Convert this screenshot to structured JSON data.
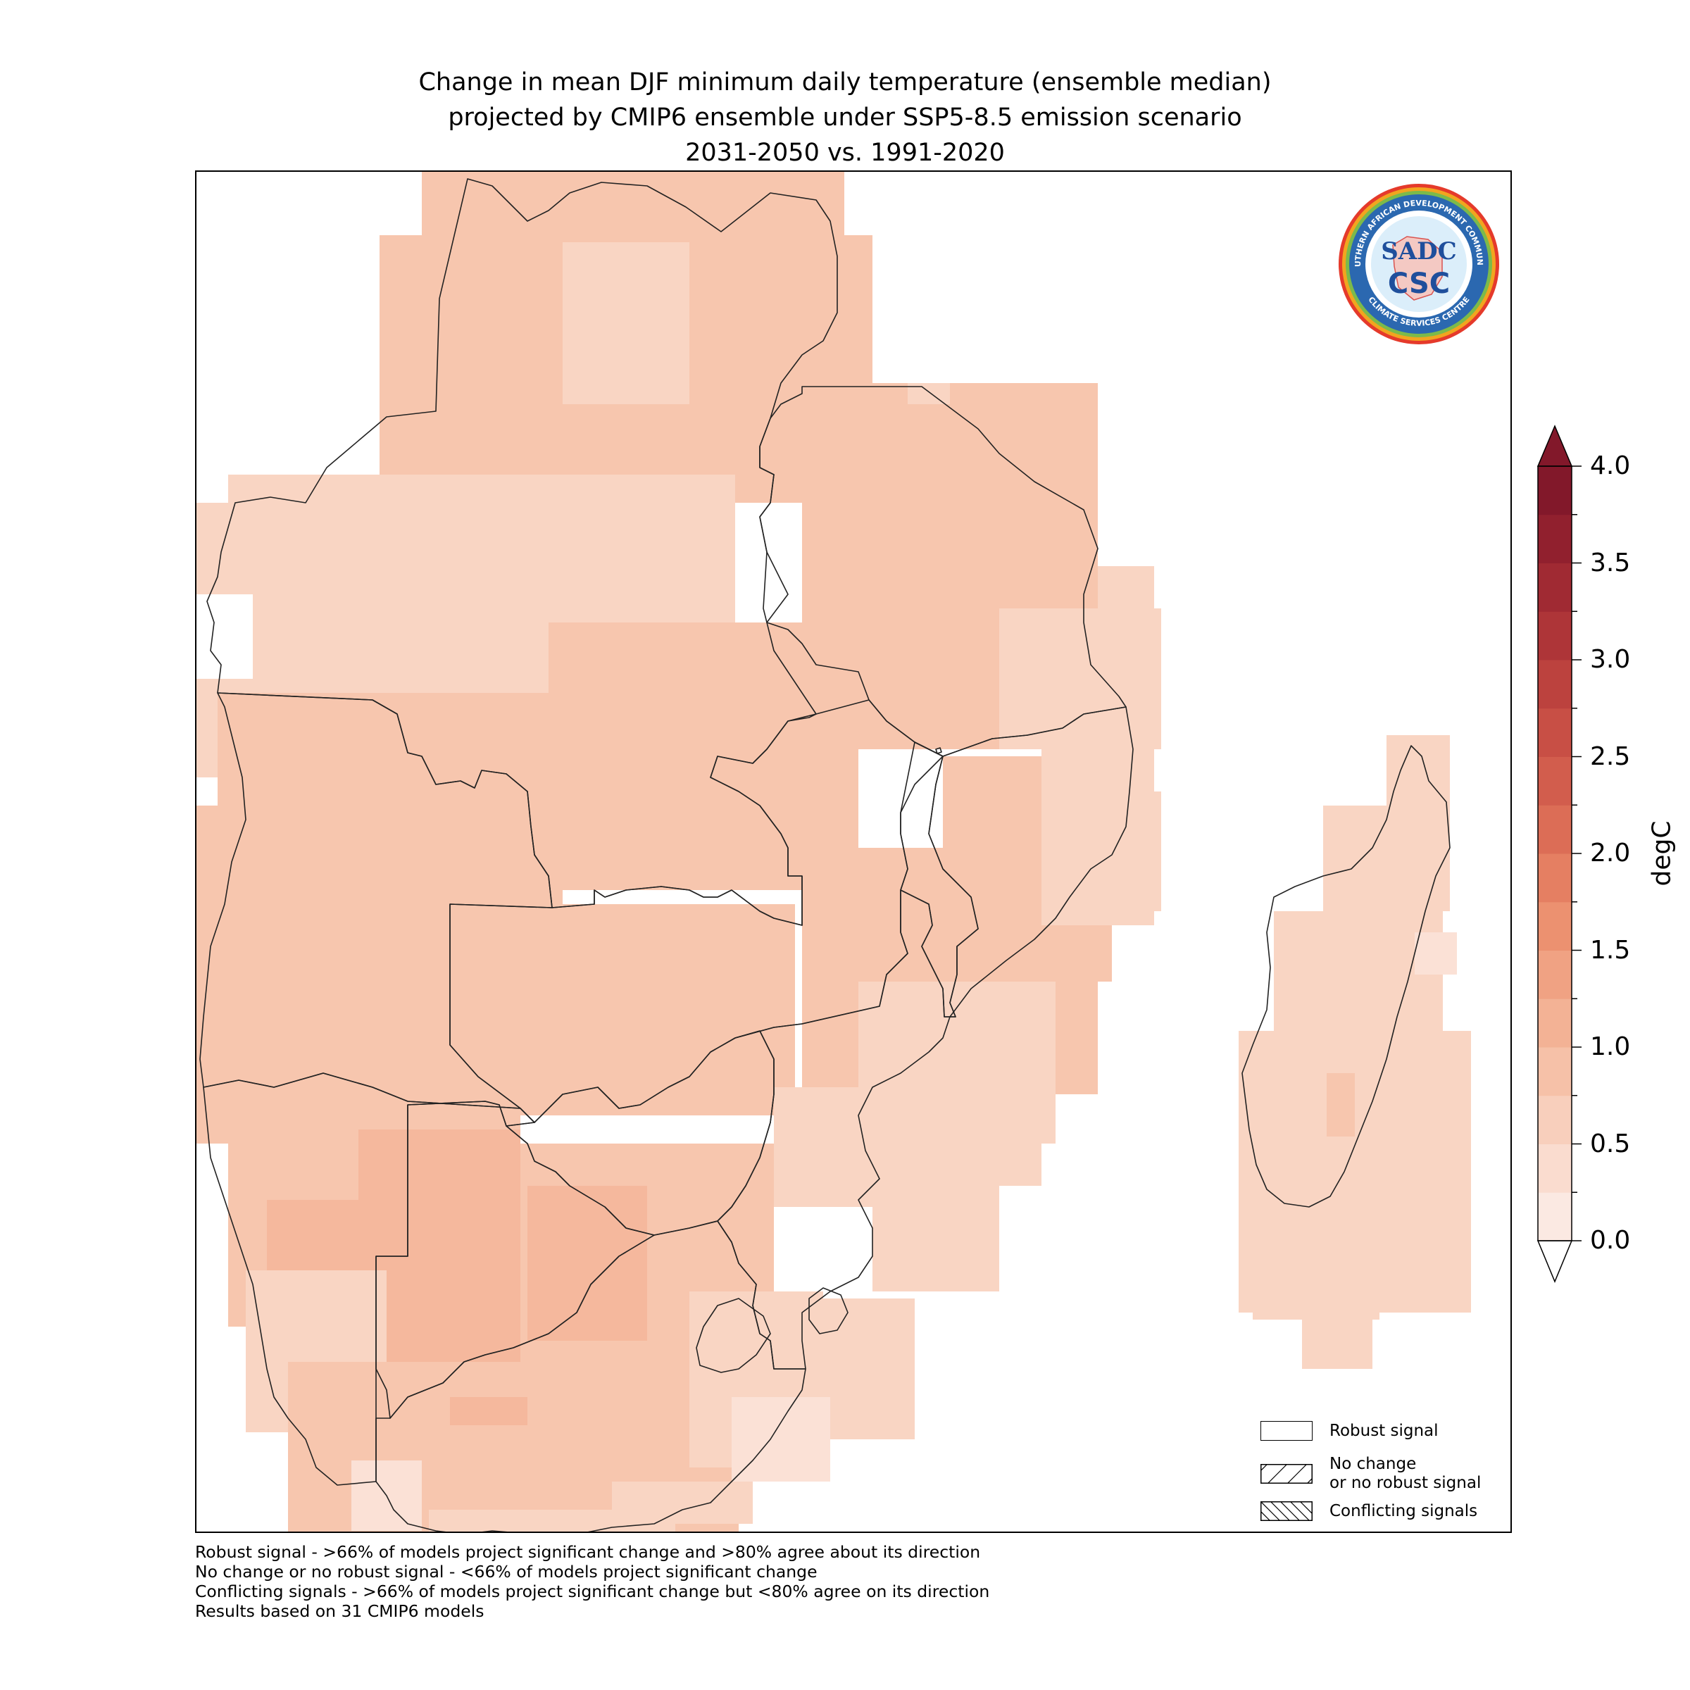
{
  "figure": {
    "title_lines": [
      "Change in mean DJF minimum daily temperature (ensemble median)",
      "projected by CMIP6 ensemble under SSP5-8.5 emission scenario",
      "2031-2050 vs. 1991-2020"
    ]
  },
  "logo": {
    "top_text": "SOUTHERN AFRICAN DEVELOPMENT COMMUNITY",
    "bottom_text": "CLIMATE SERVICES CENTRE",
    "mark_top": "SADC",
    "mark_bottom": "CSC"
  },
  "legend": {
    "items": [
      {
        "label_lines": [
          "Robust signal"
        ],
        "hatch": "none"
      },
      {
        "label_lines": [
          "No change",
          "or no robust signal"
        ],
        "hatch": "forward"
      },
      {
        "label_lines": [
          "Conflicting signals"
        ],
        "hatch": "backward"
      }
    ]
  },
  "colorbar": {
    "unit": "degC",
    "tick_labels": [
      "0.0",
      "0.5",
      "1.0",
      "1.5",
      "2.0",
      "2.5",
      "3.0",
      "3.5",
      "4.0"
    ],
    "range": [
      0.0,
      4.0
    ],
    "step": 0.25,
    "extend": "both",
    "colors": [
      "#fbe9e2",
      "#fadccf",
      "#f8cfbc",
      "#f6c1a8",
      "#f3b295",
      "#f0a283",
      "#ec9170",
      "#e57f62",
      "#dc6d56",
      "#d25d4d",
      "#c84f45",
      "#bc423e",
      "#ae3538",
      "#a02a33",
      "#91202e",
      "#82182a"
    ]
  },
  "footnotes": [
    "Robust signal - >66% of models project significant change and >80% agree about its direction",
    "No change or no robust signal - <66% of models project significant change",
    "Conflicting signals - >66% of models project significant change but <80% agree on its direction",
    "Results based on 31 CMIP6 models"
  ]
}
